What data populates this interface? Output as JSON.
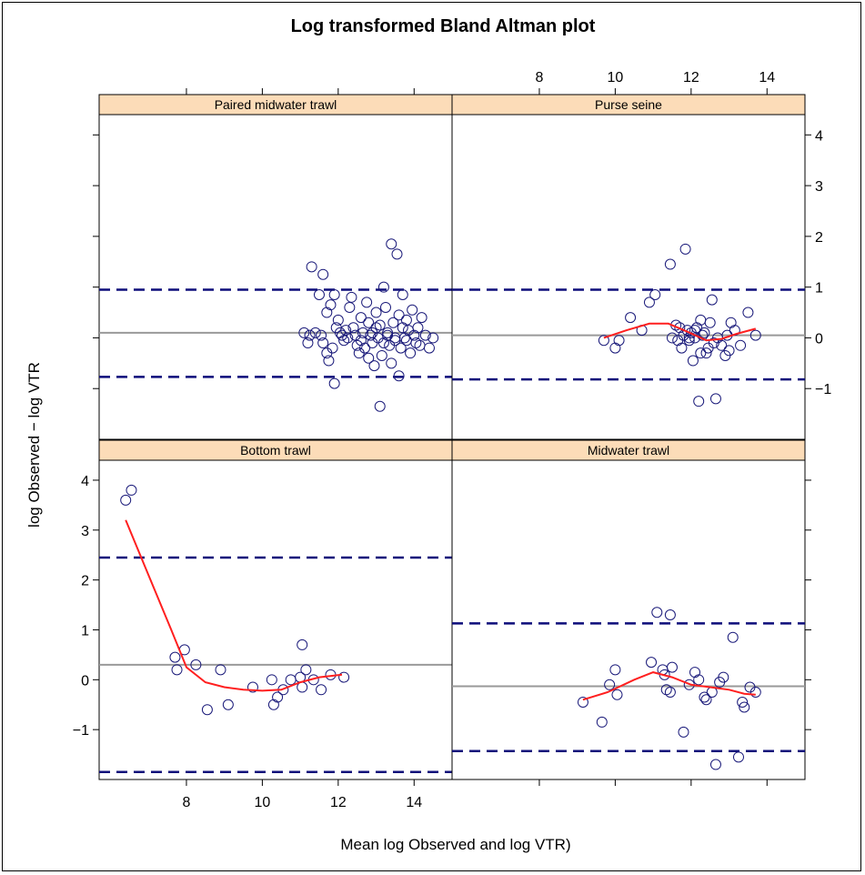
{
  "chart_data": {
    "type": "scatter",
    "title": "Log transformed Bland Altman plot",
    "xlabel": "Mean log Observed and log VTR)",
    "ylabel": "log Observed − log VTR",
    "xlim": [
      5.7,
      15.0
    ],
    "ylim": [
      -2.0,
      4.4
    ],
    "x_ticks": [
      8,
      10,
      12,
      14
    ],
    "y_ticks": [
      -1,
      0,
      1,
      2,
      3,
      4
    ],
    "colors": {
      "strip": "#fcdcb8",
      "points": "#1a1a7a",
      "mean_line": "#999999",
      "limits": "#0d0d7a",
      "smoother": "#ff1f1f"
    },
    "panels": [
      {
        "name": "Paired midwater trawl",
        "position": "top-left",
        "mean": 0.1,
        "upper_loa": 0.95,
        "lower_loa": -0.77,
        "points": [
          [
            11.3,
            1.4
          ],
          [
            11.6,
            1.25
          ],
          [
            11.5,
            0.85
          ],
          [
            11.8,
            0.65
          ],
          [
            11.9,
            0.85
          ],
          [
            11.7,
            0.5
          ],
          [
            11.1,
            0.1
          ],
          [
            11.25,
            0.05
          ],
          [
            11.2,
            -0.1
          ],
          [
            11.4,
            0.1
          ],
          [
            11.55,
            0.05
          ],
          [
            11.6,
            -0.1
          ],
          [
            11.7,
            -0.3
          ],
          [
            11.75,
            -0.45
          ],
          [
            11.85,
            -0.2
          ],
          [
            11.9,
            -0.9
          ],
          [
            11.95,
            0.2
          ],
          [
            12.0,
            0.35
          ],
          [
            12.05,
            0.1
          ],
          [
            12.1,
            0.05
          ],
          [
            12.15,
            -0.05
          ],
          [
            12.2,
            0.15
          ],
          [
            12.25,
            0.0
          ],
          [
            12.3,
            0.6
          ],
          [
            12.35,
            0.8
          ],
          [
            12.4,
            0.2
          ],
          [
            12.45,
            0.05
          ],
          [
            12.5,
            -0.15
          ],
          [
            12.55,
            -0.3
          ],
          [
            12.6,
            0.4
          ],
          [
            12.65,
            0.1
          ],
          [
            12.7,
            -0.2
          ],
          [
            12.75,
            0.7
          ],
          [
            12.8,
            0.3
          ],
          [
            12.85,
            0.05
          ],
          [
            12.9,
            -0.1
          ],
          [
            12.95,
            -0.55
          ],
          [
            13.0,
            0.5
          ],
          [
            13.05,
            0.0
          ],
          [
            13.1,
            0.25
          ],
          [
            13.15,
            -0.35
          ],
          [
            13.2,
            1.0
          ],
          [
            13.25,
            0.6
          ],
          [
            13.3,
            0.1
          ],
          [
            13.35,
            -0.15
          ],
          [
            13.4,
            1.85
          ],
          [
            13.45,
            0.3
          ],
          [
            13.5,
            0.0
          ],
          [
            13.55,
            1.65
          ],
          [
            13.6,
            0.45
          ],
          [
            13.65,
            -0.2
          ],
          [
            13.7,
            0.2
          ],
          [
            13.75,
            0.0
          ],
          [
            13.8,
            -0.05
          ],
          [
            13.85,
            0.15
          ],
          [
            13.9,
            -0.3
          ],
          [
            13.95,
            0.55
          ],
          [
            14.0,
            0.05
          ],
          [
            14.05,
            -0.1
          ],
          [
            14.1,
            0.2
          ],
          [
            14.15,
            -0.15
          ],
          [
            14.2,
            0.4
          ],
          [
            14.3,
            0.05
          ],
          [
            14.4,
            -0.2
          ],
          [
            14.5,
            0.0
          ],
          [
            13.1,
            -1.35
          ],
          [
            13.4,
            -0.5
          ],
          [
            13.6,
            -0.75
          ],
          [
            13.2,
            -0.1
          ],
          [
            13.0,
            0.2
          ],
          [
            13.3,
            0.05
          ],
          [
            13.5,
            -0.05
          ],
          [
            12.9,
            0.1
          ],
          [
            13.7,
            0.85
          ],
          [
            13.8,
            0.35
          ],
          [
            12.6,
            -0.05
          ],
          [
            12.8,
            -0.4
          ]
        ],
        "smooth": []
      },
      {
        "name": "Purse seine",
        "position": "top-right",
        "mean": 0.05,
        "upper_loa": 0.95,
        "lower_loa": -0.82,
        "points": [
          [
            9.7,
            -0.05
          ],
          [
            10.0,
            -0.2
          ],
          [
            10.1,
            -0.05
          ],
          [
            10.4,
            0.4
          ],
          [
            10.7,
            0.15
          ],
          [
            10.9,
            0.7
          ],
          [
            11.05,
            0.85
          ],
          [
            11.45,
            1.45
          ],
          [
            11.5,
            0.0
          ],
          [
            11.6,
            0.25
          ],
          [
            11.65,
            -0.05
          ],
          [
            11.7,
            0.2
          ],
          [
            11.75,
            -0.2
          ],
          [
            11.8,
            0.05
          ],
          [
            11.85,
            1.75
          ],
          [
            11.9,
            0.15
          ],
          [
            11.95,
            -0.05
          ],
          [
            12.0,
            0.1
          ],
          [
            12.05,
            -0.45
          ],
          [
            12.1,
            0.0
          ],
          [
            12.15,
            0.2
          ],
          [
            12.2,
            -1.25
          ],
          [
            12.25,
            0.35
          ],
          [
            12.3,
            0.05
          ],
          [
            12.35,
            0.1
          ],
          [
            12.4,
            -0.3
          ],
          [
            12.45,
            -0.2
          ],
          [
            12.5,
            0.3
          ],
          [
            12.55,
            0.75
          ],
          [
            12.6,
            -0.1
          ],
          [
            12.65,
            -1.2
          ],
          [
            12.7,
            0.0
          ],
          [
            12.8,
            -0.15
          ],
          [
            12.9,
            -0.35
          ],
          [
            12.95,
            0.05
          ],
          [
            13.0,
            -0.25
          ],
          [
            13.05,
            0.3
          ],
          [
            13.15,
            0.15
          ],
          [
            13.3,
            -0.15
          ],
          [
            13.5,
            0.5
          ],
          [
            13.7,
            0.05
          ],
          [
            12.25,
            -0.3
          ],
          [
            12.1,
            0.15
          ],
          [
            11.95,
            0.0
          ]
        ],
        "smooth": [
          [
            9.7,
            0.0
          ],
          [
            10.3,
            0.15
          ],
          [
            10.9,
            0.28
          ],
          [
            11.4,
            0.28
          ],
          [
            11.9,
            0.12
          ],
          [
            12.4,
            -0.05
          ],
          [
            12.8,
            -0.02
          ],
          [
            13.2,
            0.08
          ],
          [
            13.7,
            0.18
          ]
        ]
      },
      {
        "name": "Bottom trawl",
        "position": "bottom-left",
        "mean": 0.3,
        "upper_loa": 2.45,
        "lower_loa": -1.85,
        "points": [
          [
            6.4,
            3.6
          ],
          [
            6.55,
            3.8
          ],
          [
            7.7,
            0.45
          ],
          [
            7.75,
            0.2
          ],
          [
            7.95,
            0.6
          ],
          [
            8.25,
            0.3
          ],
          [
            8.55,
            -0.6
          ],
          [
            8.9,
            0.2
          ],
          [
            9.1,
            -0.5
          ],
          [
            9.75,
            -0.15
          ],
          [
            10.25,
            0.0
          ],
          [
            10.3,
            -0.5
          ],
          [
            10.4,
            -0.35
          ],
          [
            10.55,
            -0.2
          ],
          [
            10.75,
            0.0
          ],
          [
            11.0,
            0.05
          ],
          [
            11.05,
            -0.15
          ],
          [
            11.05,
            0.7
          ],
          [
            11.15,
            0.2
          ],
          [
            11.35,
            0.0
          ],
          [
            11.55,
            -0.2
          ],
          [
            11.8,
            0.1
          ],
          [
            12.15,
            0.05
          ]
        ],
        "smooth": [
          [
            6.4,
            3.2
          ],
          [
            7.0,
            2.1
          ],
          [
            7.6,
            1.0
          ],
          [
            8.0,
            0.25
          ],
          [
            8.5,
            -0.05
          ],
          [
            9.0,
            -0.15
          ],
          [
            9.5,
            -0.2
          ],
          [
            10.0,
            -0.22
          ],
          [
            10.5,
            -0.2
          ],
          [
            11.0,
            -0.05
          ],
          [
            11.5,
            0.05
          ],
          [
            12.1,
            0.1
          ]
        ]
      },
      {
        "name": "Midwater trawl",
        "position": "bottom-right",
        "mean": -0.13,
        "upper_loa": 1.13,
        "lower_loa": -1.43,
        "points": [
          [
            9.15,
            -0.45
          ],
          [
            9.65,
            -0.85
          ],
          [
            9.85,
            -0.1
          ],
          [
            10.0,
            0.2
          ],
          [
            10.05,
            -0.3
          ],
          [
            10.95,
            0.35
          ],
          [
            11.1,
            1.35
          ],
          [
            11.25,
            0.2
          ],
          [
            11.3,
            0.1
          ],
          [
            11.35,
            -0.2
          ],
          [
            11.45,
            1.3
          ],
          [
            11.5,
            0.25
          ],
          [
            11.45,
            -0.25
          ],
          [
            11.8,
            -1.05
          ],
          [
            11.95,
            -0.1
          ],
          [
            12.1,
            0.15
          ],
          [
            12.2,
            0.0
          ],
          [
            12.35,
            -0.35
          ],
          [
            12.4,
            -0.4
          ],
          [
            12.55,
            -0.25
          ],
          [
            12.65,
            -1.7
          ],
          [
            12.75,
            -0.05
          ],
          [
            12.85,
            0.05
          ],
          [
            13.1,
            0.85
          ],
          [
            13.25,
            -1.55
          ],
          [
            13.35,
            -0.45
          ],
          [
            13.4,
            -0.55
          ],
          [
            13.55,
            -0.15
          ],
          [
            13.7,
            -0.25
          ]
        ],
        "smooth": [
          [
            9.15,
            -0.4
          ],
          [
            9.8,
            -0.25
          ],
          [
            10.5,
            0.0
          ],
          [
            11.0,
            0.15
          ],
          [
            11.5,
            0.05
          ],
          [
            12.0,
            -0.1
          ],
          [
            12.5,
            -0.15
          ],
          [
            13.0,
            -0.2
          ],
          [
            13.4,
            -0.28
          ],
          [
            13.7,
            -0.3
          ]
        ]
      }
    ]
  }
}
